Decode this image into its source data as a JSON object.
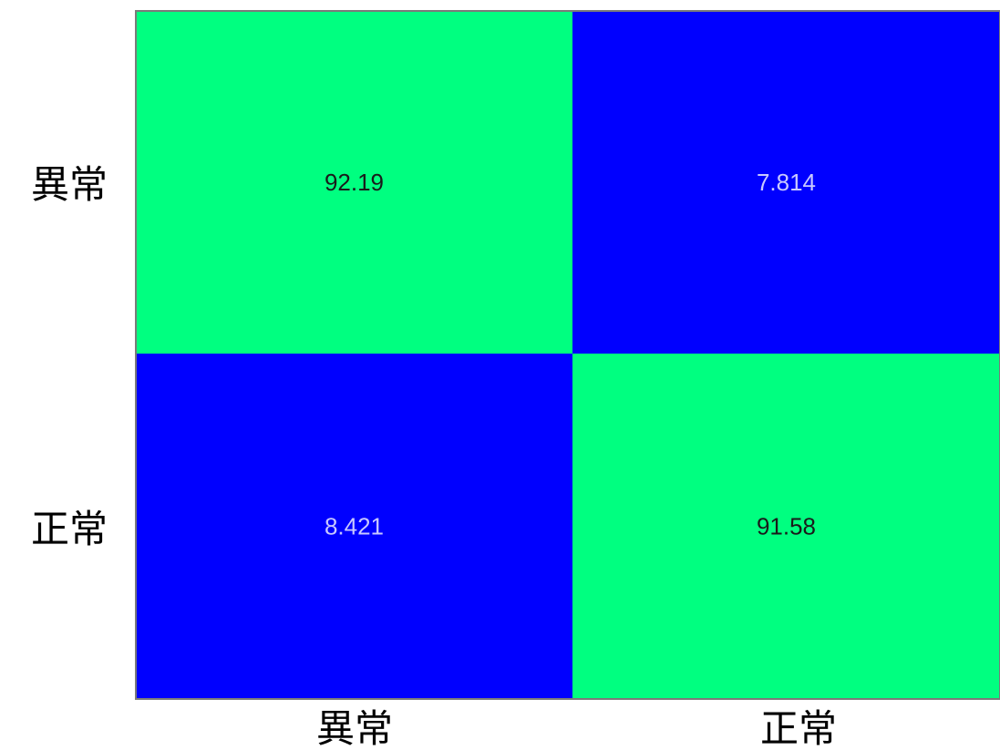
{
  "chart_data": {
    "type": "heatmap",
    "title": "",
    "xlabel": "",
    "ylabel": "",
    "rows": [
      "異常",
      "正常"
    ],
    "columns": [
      "異常",
      "正常"
    ],
    "values": [
      [
        92.19,
        7.814
      ],
      [
        8.421,
        91.58
      ]
    ],
    "value_labels": [
      [
        "92.19",
        "7.814"
      ],
      [
        "8.421",
        "91.58"
      ]
    ],
    "grid": false,
    "legend": "none"
  },
  "colors": {
    "high": "#00ff80",
    "low": "#0000ff",
    "text_on_high": "#1a1a1a",
    "text_on_low": "#c8c8ff",
    "frame": "#7a7a7a"
  }
}
